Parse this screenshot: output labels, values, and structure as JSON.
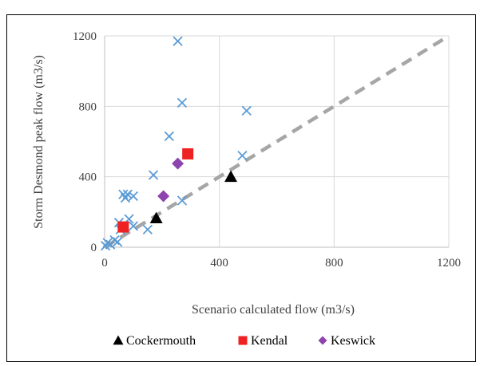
{
  "chart_data": {
    "type": "scatter",
    "xlabel": "Scenario calculated flow (m3/s)",
    "ylabel": "Storm Desmond peak flow (m3/s)",
    "xlim": [
      0,
      1200
    ],
    "ylim": [
      0,
      1200
    ],
    "xticks": [
      "0",
      "400",
      "800",
      "1200"
    ],
    "yticks": [
      "0",
      "400",
      "800",
      "1200"
    ],
    "grid": true,
    "legend_position": "bottom",
    "reference_line": {
      "style": "dashed",
      "color": "#a6a6a6",
      "from": [
        0,
        0
      ],
      "to": [
        1200,
        1200
      ]
    },
    "series": [
      {
        "marker": "x",
        "color": "#5b9bd5",
        "points": [
          [
            3,
            8
          ],
          [
            10,
            25
          ],
          [
            20,
            15
          ],
          [
            35,
            40
          ],
          [
            45,
            30
          ],
          [
            50,
            140
          ],
          [
            55,
            100
          ],
          [
            65,
            300
          ],
          [
            72,
            280
          ],
          [
            80,
            300
          ],
          [
            85,
            160
          ],
          [
            100,
            120
          ],
          [
            100,
            290
          ],
          [
            150,
            100
          ],
          [
            170,
            410
          ],
          [
            225,
            630
          ],
          [
            255,
            1170
          ],
          [
            270,
            820
          ],
          [
            270,
            265
          ],
          [
            480,
            520
          ],
          [
            495,
            775
          ]
        ]
      },
      {
        "name": "Cockermouth",
        "marker": "triangle",
        "color": "#000000",
        "points": [
          [
            180,
            165
          ],
          [
            440,
            400
          ]
        ]
      },
      {
        "name": "Kendal",
        "marker": "square",
        "color": "#ee2222",
        "points": [
          [
            65,
            115
          ],
          [
            290,
            530
          ]
        ]
      },
      {
        "name": "Keswick",
        "marker": "diamond",
        "color": "#8e44ad",
        "points": [
          [
            205,
            290
          ],
          [
            255,
            475
          ]
        ]
      }
    ]
  }
}
